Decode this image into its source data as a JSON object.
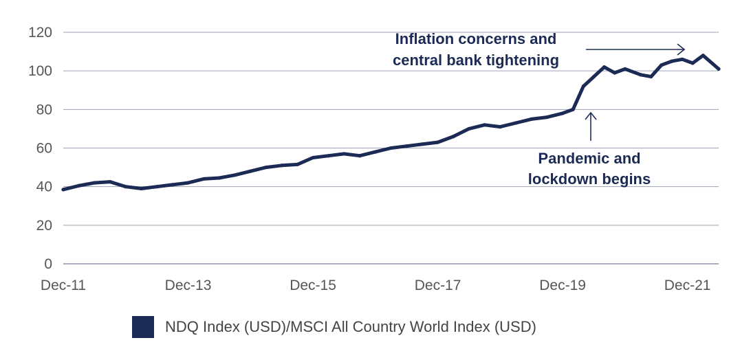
{
  "chart_data": {
    "type": "line",
    "title": "",
    "xlabel": "",
    "ylabel": "",
    "ylim": [
      0,
      120
    ],
    "yticks": [
      "0",
      "20",
      "40",
      "60",
      "80",
      "100",
      "120"
    ],
    "xticks": [
      "Dec-11",
      "Dec-13",
      "Dec-15",
      "Dec-17",
      "Dec-19",
      "Dec-21"
    ],
    "xlim": [
      "Dec-11",
      "Jun-22"
    ],
    "grid": "horizontal",
    "legend_position": "bottom",
    "series": [
      {
        "name": "NDQ Index (USD)/MSCI All Country World Index (USD)",
        "color": "#1c2b55",
        "x": [
          "Dec-11",
          "Mar-12",
          "Jun-12",
          "Sep-12",
          "Dec-12",
          "Mar-13",
          "Jun-13",
          "Sep-13",
          "Dec-13",
          "Mar-14",
          "Jun-14",
          "Sep-14",
          "Dec-14",
          "Mar-15",
          "Jun-15",
          "Sep-15",
          "Dec-15",
          "Mar-16",
          "Jun-16",
          "Sep-16",
          "Dec-16",
          "Mar-17",
          "Jun-17",
          "Sep-17",
          "Dec-17",
          "Mar-18",
          "Jun-18",
          "Sep-18",
          "Dec-18",
          "Mar-19",
          "Jun-19",
          "Sep-19",
          "Dec-19",
          "Feb-20",
          "Apr-20",
          "Jun-20",
          "Aug-20",
          "Oct-20",
          "Dec-20",
          "Mar-21",
          "May-21",
          "Jul-21",
          "Sep-21",
          "Nov-21",
          "Jan-22",
          "Mar-22",
          "Jun-22"
        ],
        "values": [
          38.5,
          40.5,
          42,
          42.5,
          40,
          39,
          40,
          41,
          42,
          44,
          44.5,
          46,
          48,
          50,
          51,
          51.5,
          55,
          56,
          57,
          56,
          58,
          60,
          61,
          62,
          63,
          66,
          70,
          72,
          71,
          73,
          75,
          76,
          78,
          80,
          92,
          97,
          102,
          99,
          101,
          98,
          97,
          103,
          105,
          106,
          104,
          108,
          101
        ]
      }
    ]
  },
  "annotations": {
    "inflation": [
      "Inflation concerns and",
      "central bank tightening"
    ],
    "pandemic": [
      "Pandemic and",
      "lockdown begins"
    ]
  },
  "legend": {
    "label": "NDQ Index (USD)/MSCI All Country World Index (USD)"
  }
}
